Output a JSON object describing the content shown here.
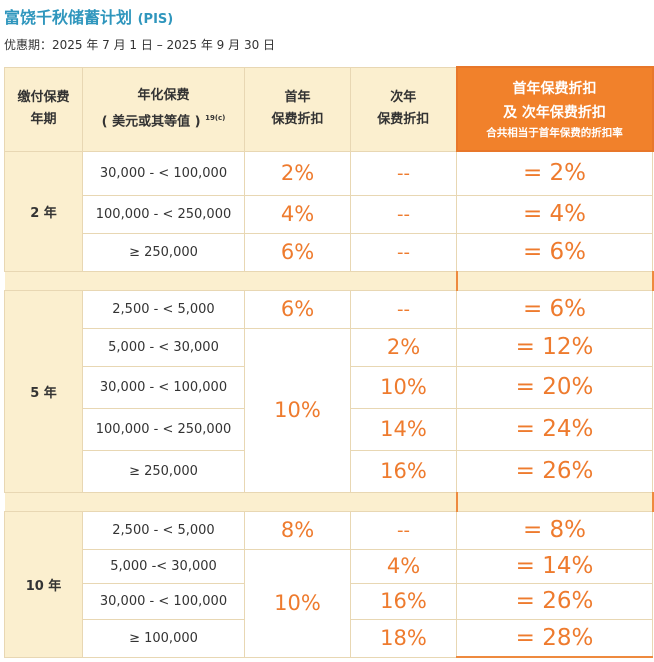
{
  "title": "富饶千秋储蓄计划",
  "title_suffix": "(PIS)",
  "period": "优惠期：2025 年 7 月 1 日 – 2025 年 9 月 30 日",
  "headers": {
    "term_line1": "缴付保费",
    "term_line2": "年期",
    "premium_line1": "年化保费",
    "premium_line2": "( 美元或其等值 )",
    "premium_note": "19(c)",
    "first_line1": "首年",
    "first_line2": "保费折扣",
    "second_line1": "次年",
    "second_line2": "保费折扣",
    "total_line1": "首年保费折扣",
    "total_line2": "及 次年保费折扣",
    "total_line3": "合共相当于首年保费的折扣率"
  },
  "groups": [
    {
      "term": "2 年",
      "rows": [
        {
          "range": "30,000 - < 100,000",
          "first": "2%",
          "second": "--",
          "total": "= 2%"
        },
        {
          "range": "100,000 - < 250,000",
          "first": "4%",
          "second": "--",
          "total": "= 4%"
        },
        {
          "range": "≥ 250,000",
          "first": "6%",
          "second": "--",
          "total": "= 6%"
        }
      ]
    },
    {
      "term": "5 年",
      "merged_first": "10%",
      "rows": [
        {
          "range": "2,500 - < 5,000",
          "first": "6%",
          "second": "--",
          "total": "= 6%"
        },
        {
          "range": "5,000 - < 30,000",
          "second": "2%",
          "total": "= 12%"
        },
        {
          "range": "30,000 - < 100,000",
          "second": "10%",
          "total": "= 20%"
        },
        {
          "range": "100,000 - < 250,000",
          "second": "14%",
          "total": "= 24%"
        },
        {
          "range": "≥ 250,000",
          "second": "16%",
          "total": "= 26%"
        }
      ]
    },
    {
      "term": "10 年",
      "merged_first": "10%",
      "rows": [
        {
          "range": "2,500 - < 5,000",
          "first": "8%",
          "second": "--",
          "total": "= 8%"
        },
        {
          "range": "5,000 -< 30,000",
          "second": "4%",
          "total": "= 14%"
        },
        {
          "range": "30,000 - < 100,000",
          "second": "16%",
          "total": "= 26%"
        },
        {
          "range": "≥ 100,000",
          "second": "18%",
          "total": "= 28%"
        }
      ]
    }
  ]
}
